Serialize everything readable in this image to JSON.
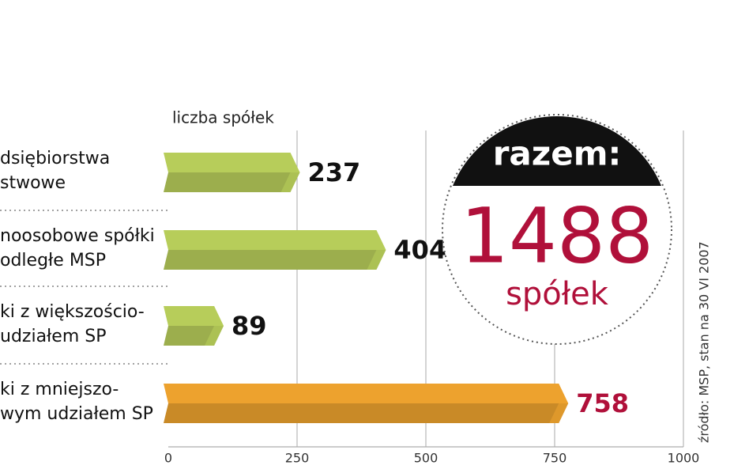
{
  "chart_data": {
    "type": "hbar",
    "axis_label": "liczba spółek",
    "categories": [
      "dsiębiorstwa\nstwowe",
      "noosobowe spółki\nodległe MSP",
      "ki z większościo-\nudziałem SP",
      "ki z mniejszo-\nwym udziałem SP"
    ],
    "values": [
      237,
      404,
      89,
      758
    ],
    "colors": [
      "#b7cd5a",
      "#b7cd5a",
      "#b7cd5a",
      "#eda22e"
    ],
    "label_colors": [
      "#111111",
      "#111111",
      "#111111",
      "#b0103a"
    ],
    "xlim": [
      0,
      1000
    ],
    "xticks": [
      0,
      250,
      500,
      750,
      1000
    ],
    "grid": true,
    "total": {
      "label": "razem:",
      "value": 1488,
      "unit": "spółek"
    },
    "source": "źródło: MSP, stan na 30 VI 2007"
  }
}
